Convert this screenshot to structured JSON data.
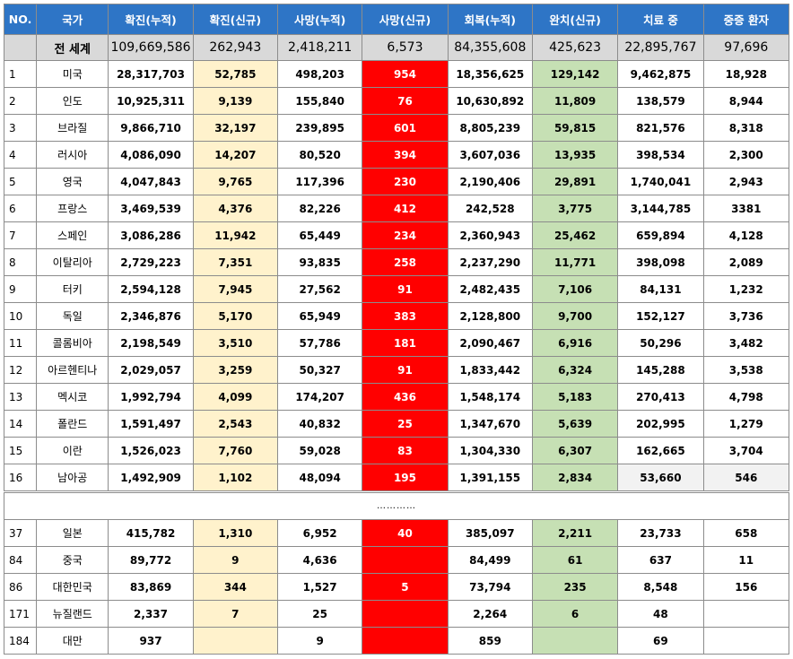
{
  "headers": [
    "NO.",
    "국가",
    "확진(누적)",
    "확진(신규)",
    "사망(누적)",
    "사망(신규)",
    "회복(누적)",
    "완치(신규)",
    "치료 중",
    "중증 환자"
  ],
  "world": {
    "label": "전 세계",
    "values": [
      "109,669,586",
      "262,943",
      "2,418,211",
      "6,573",
      "84,355,608",
      "425,623",
      "22,895,767",
      "97,696"
    ]
  },
  "rows": [
    {
      "no": "1",
      "country": "미국",
      "cum_cases": "28,317,703",
      "new_cases": "52,785",
      "cum_deaths": "498,203",
      "new_deaths": "954",
      "cum_recovered": "18,356,625",
      "new_recovered": "129,142",
      "active": "9,462,875",
      "critical": "18,928"
    },
    {
      "no": "2",
      "country": "인도",
      "cum_cases": "10,925,311",
      "new_cases": "9,139",
      "cum_deaths": "155,840",
      "new_deaths": "76",
      "cum_recovered": "10,630,892",
      "new_recovered": "11,809",
      "active": "138,579",
      "critical": "8,944"
    },
    {
      "no": "3",
      "country": "브라질",
      "cum_cases": "9,866,710",
      "new_cases": "32,197",
      "cum_deaths": "239,895",
      "new_deaths": "601",
      "cum_recovered": "8,805,239",
      "new_recovered": "59,815",
      "active": "821,576",
      "critical": "8,318"
    },
    {
      "no": "4",
      "country": "러시아",
      "cum_cases": "4,086,090",
      "new_cases": "14,207",
      "cum_deaths": "80,520",
      "new_deaths": "394",
      "cum_recovered": "3,607,036",
      "new_recovered": "13,935",
      "active": "398,534",
      "critical": "2,300"
    },
    {
      "no": "5",
      "country": "영국",
      "cum_cases": "4,047,843",
      "new_cases": "9,765",
      "cum_deaths": "117,396",
      "new_deaths": "230",
      "cum_recovered": "2,190,406",
      "new_recovered": "29,891",
      "active": "1,740,041",
      "critical": "2,943"
    },
    {
      "no": "6",
      "country": "프랑스",
      "cum_cases": "3,469,539",
      "new_cases": "4,376",
      "cum_deaths": "82,226",
      "new_deaths": "412",
      "cum_recovered": "242,528",
      "new_recovered": "3,775",
      "active": "3,144,785",
      "critical": "3381"
    },
    {
      "no": "7",
      "country": "스페인",
      "cum_cases": "3,086,286",
      "new_cases": "11,942",
      "cum_deaths": "65,449",
      "new_deaths": "234",
      "cum_recovered": "2,360,943",
      "new_recovered": "25,462",
      "active": "659,894",
      "critical": "4,128"
    },
    {
      "no": "8",
      "country": "이탈리아",
      "cum_cases": "2,729,223",
      "new_cases": "7,351",
      "cum_deaths": "93,835",
      "new_deaths": "258",
      "cum_recovered": "2,237,290",
      "new_recovered": "11,771",
      "active": "398,098",
      "critical": "2,089"
    },
    {
      "no": "9",
      "country": "터키",
      "cum_cases": "2,594,128",
      "new_cases": "7,945",
      "cum_deaths": "27,562",
      "new_deaths": "91",
      "cum_recovered": "2,482,435",
      "new_recovered": "7,106",
      "active": "84,131",
      "critical": "1,232"
    },
    {
      "no": "10",
      "country": "독일",
      "cum_cases": "2,346,876",
      "new_cases": "5,170",
      "cum_deaths": "65,949",
      "new_deaths": "383",
      "cum_recovered": "2,128,800",
      "new_recovered": "9,700",
      "active": "152,127",
      "critical": "3,736"
    },
    {
      "no": "11",
      "country": "콜롬비아",
      "cum_cases": "2,198,549",
      "new_cases": "3,510",
      "cum_deaths": "57,786",
      "new_deaths": "181",
      "cum_recovered": "2,090,467",
      "new_recovered": "6,916",
      "active": "50,296",
      "critical": "3,482"
    },
    {
      "no": "12",
      "country": "아르헨티나",
      "cum_cases": "2,029,057",
      "new_cases": "3,259",
      "cum_deaths": "50,327",
      "new_deaths": "91",
      "cum_recovered": "1,833,442",
      "new_recovered": "6,324",
      "active": "145,288",
      "critical": "3,538"
    },
    {
      "no": "13",
      "country": "멕시코",
      "cum_cases": "1,992,794",
      "new_cases": "4,099",
      "cum_deaths": "174,207",
      "new_deaths": "436",
      "cum_recovered": "1,548,174",
      "new_recovered": "5,183",
      "active": "270,413",
      "critical": "4,798"
    },
    {
      "no": "14",
      "country": "폴란드",
      "cum_cases": "1,591,497",
      "new_cases": "2,543",
      "cum_deaths": "40,832",
      "new_deaths": "25",
      "cum_recovered": "1,347,670",
      "new_recovered": "5,639",
      "active": "202,995",
      "critical": "1,279"
    },
    {
      "no": "15",
      "country": "이란",
      "cum_cases": "1,526,023",
      "new_cases": "7,760",
      "cum_deaths": "59,028",
      "new_deaths": "83",
      "cum_recovered": "1,304,330",
      "new_recovered": "6,307",
      "active": "162,665",
      "critical": "3,704"
    },
    {
      "no": "16",
      "country": "남아공",
      "cum_cases": "1,492,909",
      "new_cases": "1,102",
      "cum_deaths": "48,094",
      "new_deaths": "195",
      "cum_recovered": "1,391,155",
      "new_recovered": "2,834",
      "active": "53,660",
      "critical": "546"
    }
  ],
  "separator": "…………",
  "rows2": [
    {
      "no": "37",
      "country": "일본",
      "cum_cases": "415,782",
      "new_cases": "1,310",
      "cum_deaths": "6,952",
      "new_deaths": "40",
      "cum_recovered": "385,097",
      "new_recovered": "2,211",
      "active": "23,733",
      "critical": "658"
    },
    {
      "no": "84",
      "country": "중국",
      "cum_cases": "89,772",
      "new_cases": "9",
      "cum_deaths": "4,636",
      "new_deaths": "",
      "cum_recovered": "84,499",
      "new_recovered": "61",
      "active": "637",
      "critical": "11"
    },
    {
      "no": "86",
      "country": "대한민국",
      "cum_cases": "83,869",
      "new_cases": "344",
      "cum_deaths": "1,527",
      "new_deaths": "5",
      "cum_recovered": "73,794",
      "new_recovered": "235",
      "active": "8,548",
      "critical": "156"
    },
    {
      "no": "171",
      "country": "뉴질랜드",
      "cum_cases": "2,337",
      "new_cases": "7",
      "cum_deaths": "25",
      "new_deaths": "",
      "cum_recovered": "2,264",
      "new_recovered": "6",
      "active": "48",
      "critical": ""
    },
    {
      "no": "184",
      "country": "대만",
      "cum_cases": "937",
      "new_cases": "",
      "cum_deaths": "9",
      "new_deaths": "",
      "cum_recovered": "859",
      "new_recovered": "",
      "active": "69",
      "critical": ""
    }
  ],
  "colors": {
    "header_bg": "#2e75c6",
    "world_bg": "#d9d9d9",
    "new_cases_bg": "#fff2cc",
    "new_deaths_bg": "#ff0000",
    "new_recovered_bg": "#c6e0b4"
  }
}
